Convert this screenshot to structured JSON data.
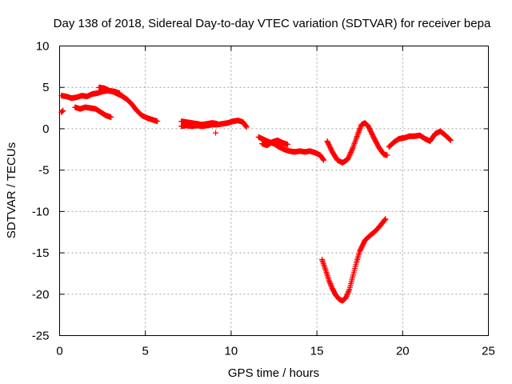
{
  "chart_data": {
    "type": "scatter",
    "title": "Day 138 of 2018, Sidereal Day-to-day VTEC variation (SDTVAR) for receiver bepa",
    "xlabel": "GPS time / hours",
    "ylabel": "SDTVAR / TECUs",
    "xlim": [
      0,
      25
    ],
    "ylim": [
      -25,
      10
    ],
    "xticks": [
      0,
      5,
      10,
      15,
      20,
      25
    ],
    "yticks": [
      -25,
      -20,
      -15,
      -10,
      -5,
      0,
      5,
      10
    ],
    "xtick_labels": [
      "0",
      "5",
      "10",
      "15",
      "20",
      "25"
    ],
    "ytick_labels": [
      "-25",
      "-20",
      "-15",
      "-10",
      "-5",
      "0",
      "5",
      "10"
    ],
    "grid": true,
    "marker": "plus",
    "color": "#ff0000",
    "series": [
      {
        "x": [
          0.1,
          0.4,
          0.7,
          1.0,
          1.3,
          1.6,
          1.9,
          2.2,
          2.5,
          2.8,
          3.1,
          3.3,
          3.6,
          3.9,
          4.2,
          4.5,
          4.8,
          5.1,
          5.4,
          5.7
        ],
        "y": [
          4.0,
          3.9,
          3.7,
          3.8,
          4.0,
          3.9,
          4.2,
          4.3,
          4.5,
          4.6,
          4.5,
          4.3,
          4.0,
          3.6,
          3.0,
          2.2,
          1.6,
          1.3,
          1.1,
          0.9
        ]
      },
      {
        "x": [
          0.9,
          1.2,
          1.5,
          1.8,
          2.1,
          2.4,
          2.7,
          3.0
        ],
        "y": [
          2.6,
          2.4,
          2.6,
          2.5,
          2.4,
          2.0,
          1.6,
          1.4
        ]
      },
      {
        "x": [
          2.3,
          2.6,
          2.9,
          3.2,
          3.5
        ],
        "y": [
          5.0,
          4.9,
          4.6,
          4.5,
          4.3
        ]
      },
      {
        "x": [
          0.1,
          0.2
        ],
        "y": [
          2.0,
          2.2
        ]
      },
      {
        "x": [
          7.1,
          7.4,
          7.7,
          8.0,
          8.3,
          8.6,
          8.9,
          9.2,
          9.5,
          9.8,
          10.1,
          10.4,
          10.7,
          10.9
        ],
        "y": [
          0.3,
          0.4,
          0.3,
          0.4,
          0.3,
          0.4,
          0.5,
          0.5,
          0.6,
          0.7,
          0.9,
          1.0,
          0.8,
          0.2
        ]
      },
      {
        "x": [
          7.1,
          7.4,
          7.7,
          8.0,
          8.3,
          8.6,
          8.9,
          9.2
        ],
        "y": [
          0.9,
          0.8,
          0.7,
          0.6,
          0.5,
          0.6,
          0.7,
          0.6
        ]
      },
      {
        "x": [
          9.1
        ],
        "y": [
          -0.5
        ]
      },
      {
        "x": [
          11.6,
          11.9,
          12.2,
          12.5,
          12.8,
          13.1,
          13.4,
          13.7,
          14.0,
          14.3,
          14.6,
          14.9,
          15.2,
          15.4
        ],
        "y": [
          -1.0,
          -1.3,
          -1.6,
          -1.8,
          -2.2,
          -2.5,
          -2.7,
          -2.8,
          -2.7,
          -2.8,
          -2.7,
          -2.9,
          -3.2,
          -3.8
        ]
      },
      {
        "x": [
          11.8,
          12.1,
          12.4,
          12.7,
          13.0,
          13.3
        ],
        "y": [
          -1.8,
          -2.0,
          -1.6,
          -1.4,
          -1.7,
          -1.9
        ]
      },
      {
        "x": [
          15.6,
          15.9,
          16.2,
          16.5,
          16.8,
          17.1,
          17.4,
          17.6,
          17.8,
          18.0,
          18.3,
          18.6,
          18.9,
          19.1
        ],
        "y": [
          -1.5,
          -2.8,
          -3.8,
          -4.1,
          -3.7,
          -2.3,
          -0.6,
          0.5,
          0.7,
          0.3,
          -1.0,
          -2.2,
          -3.1,
          -3.2
        ]
      },
      {
        "x": [
          19.2,
          19.5,
          19.8,
          20.1,
          20.4,
          20.7,
          21.0,
          21.3,
          21.6,
          21.9,
          22.2,
          22.5,
          22.8
        ],
        "y": [
          -2.2,
          -1.6,
          -1.2,
          -1.1,
          -0.9,
          -0.9,
          -0.8,
          -1.2,
          -1.5,
          -0.6,
          -0.3,
          -0.8,
          -1.4
        ]
      },
      {
        "x": [
          15.3,
          15.5,
          15.7,
          15.9,
          16.1,
          16.3,
          16.5,
          16.7,
          16.9,
          17.1,
          17.3,
          17.5,
          17.8,
          18.1,
          18.4,
          18.7,
          19.0
        ],
        "y": [
          -15.8,
          -17.0,
          -18.3,
          -19.3,
          -20.1,
          -20.6,
          -20.8,
          -20.4,
          -19.4,
          -17.8,
          -16.2,
          -14.8,
          -13.5,
          -12.9,
          -12.4,
          -11.7,
          -10.9
        ]
      }
    ]
  }
}
